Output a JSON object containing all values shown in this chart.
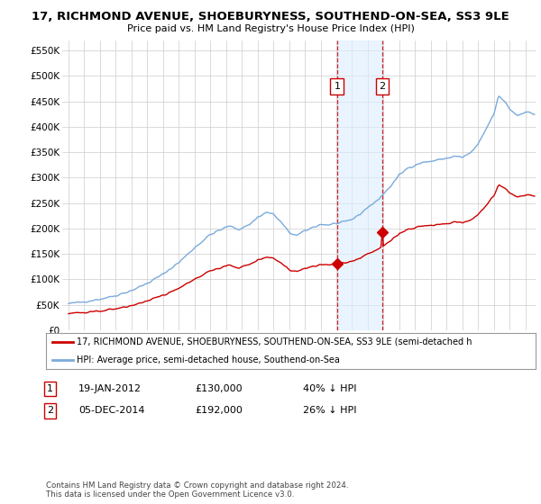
{
  "title": "17, RICHMOND AVENUE, SHOEBURYNESS, SOUTHEND-ON-SEA, SS3 9LE",
  "subtitle": "Price paid vs. HM Land Registry's House Price Index (HPI)",
  "ylim": [
    0,
    570000
  ],
  "yticks": [
    0,
    50000,
    100000,
    150000,
    200000,
    250000,
    300000,
    350000,
    400000,
    450000,
    500000,
    550000
  ],
  "ytick_labels": [
    "£0",
    "£50K",
    "£100K",
    "£150K",
    "£200K",
    "£250K",
    "£300K",
    "£350K",
    "£400K",
    "£450K",
    "£500K",
    "£550K"
  ],
  "sale1_year": 2012.05,
  "sale1_price": 130000,
  "sale2_year": 2014.92,
  "sale2_price": 192000,
  "hpi_color": "#7aabdc",
  "price_color": "#cc0000",
  "highlight_fill": "#ddeeff",
  "legend_property": "17, RICHMOND AVENUE, SHOEBURYNESS, SOUTHEND-ON-SEA, SS3 9LE (semi-detached h",
  "legend_hpi": "HPI: Average price, semi-detached house, Southend-on-Sea",
  "row1": [
    "1",
    "19-JAN-2012",
    "£130,000",
    "40% ↓ HPI"
  ],
  "row2": [
    "2",
    "05-DEC-2014",
    "£192,000",
    "26% ↓ HPI"
  ],
  "footer1": "Contains HM Land Registry data © Crown copyright and database right 2024.",
  "footer2": "This data is licensed under the Open Government Licence v3.0.",
  "bg_color": "#ffffff",
  "grid_color": "#cccccc",
  "label_box_color": "#cc0000"
}
